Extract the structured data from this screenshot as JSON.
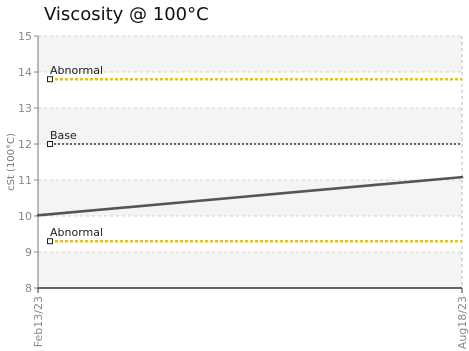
{
  "chart_data": {
    "type": "line",
    "title": "Viscosity @ 100°C",
    "ylabel": "cSt (100°C)",
    "xlabel": "",
    "ylim": [
      8,
      15
    ],
    "yticks": [
      "8",
      "9",
      "10",
      "11",
      "12",
      "13",
      "14",
      "15"
    ],
    "x": [
      "Feb13/23",
      "Aug18/23"
    ],
    "series": [
      {
        "values": [
          10.02,
          11.08
        ],
        "color": "#555555"
      }
    ],
    "reference_lines": [
      {
        "label": "Abnormal",
        "value": 13.8,
        "color": "#f2c200",
        "style": "dotted"
      },
      {
        "label": "Base",
        "value": 12.0,
        "color": "#333333",
        "style": "dotted"
      },
      {
        "label": "Abnormal",
        "value": 9.3,
        "color": "#f2c200",
        "style": "dotted"
      }
    ],
    "grid": true,
    "legend": "none"
  }
}
